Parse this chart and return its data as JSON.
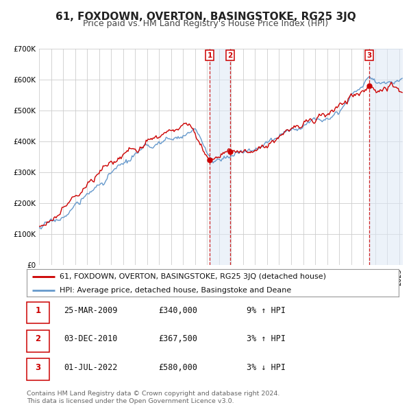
{
  "title": "61, FOXDOWN, OVERTON, BASINGSTOKE, RG25 3JQ",
  "subtitle": "Price paid vs. HM Land Registry's House Price Index (HPI)",
  "background_color": "#ffffff",
  "plot_bg_color": "#ffffff",
  "grid_color": "#cccccc",
  "ylim": [
    0,
    700000
  ],
  "yticks": [
    0,
    100000,
    200000,
    300000,
    400000,
    500000,
    600000,
    700000
  ],
  "ytick_labels": [
    "£0",
    "£100K",
    "£200K",
    "£300K",
    "£400K",
    "£500K",
    "£600K",
    "£700K"
  ],
  "xlim_start": 1995.0,
  "xlim_end": 2025.3,
  "sale_color": "#cc0000",
  "hpi_color": "#6699cc",
  "span_color": "#dde8f5",
  "transactions": [
    {
      "num": 1,
      "date": "25-MAR-2009",
      "date_decimal": 2009.23,
      "price": 340000,
      "pct": "9%",
      "dir": "↑",
      "label": "1"
    },
    {
      "num": 2,
      "date": "03-DEC-2010",
      "date_decimal": 2010.92,
      "price": 367500,
      "pct": "3%",
      "dir": "↑",
      "label": "2"
    },
    {
      "num": 3,
      "date": "01-JUL-2022",
      "date_decimal": 2022.5,
      "price": 580000,
      "pct": "3%",
      "dir": "↓",
      "label": "3"
    }
  ],
  "legend_property_label": "61, FOXDOWN, OVERTON, BASINGSTOKE, RG25 3JQ (detached house)",
  "legend_hpi_label": "HPI: Average price, detached house, Basingstoke and Deane",
  "footnote": "Contains HM Land Registry data © Crown copyright and database right 2024.\nThis data is licensed under the Open Government Licence v3.0.",
  "title_fontsize": 11,
  "subtitle_fontsize": 9,
  "tick_fontsize": 7.5,
  "legend_fontsize": 8
}
